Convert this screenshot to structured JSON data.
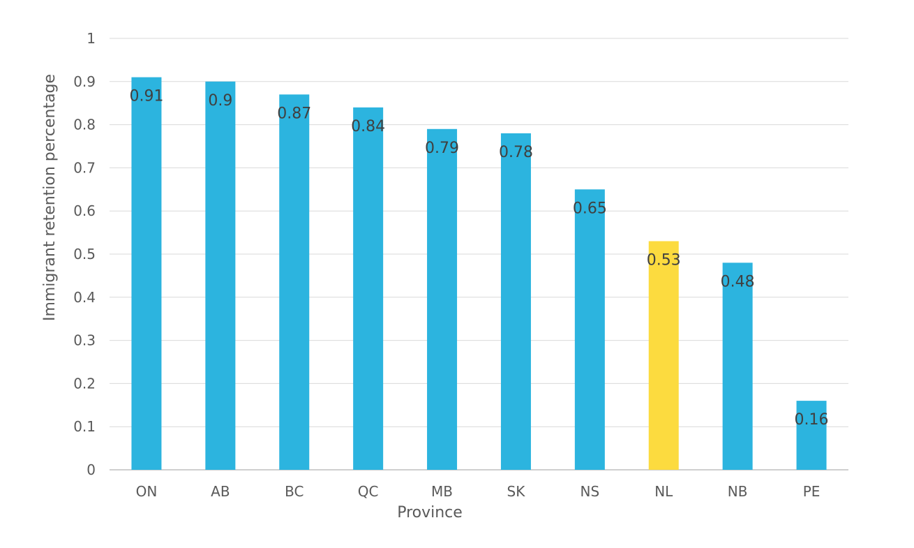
{
  "chart_data": {
    "type": "bar",
    "title": "",
    "xlabel": "Province",
    "ylabel": "Immigrant retention percentage",
    "ylim": [
      0,
      1
    ],
    "yticks": [
      "0",
      "0.1",
      "0.2",
      "0.3",
      "0.4",
      "0.5",
      "0.6",
      "0.7",
      "0.8",
      "0.9",
      "1"
    ],
    "grid": true,
    "legend": "none",
    "categories": [
      "ON",
      "AB",
      "BC",
      "QC",
      "MB",
      "SK",
      "NS",
      "NL",
      "NB",
      "PE"
    ],
    "values": [
      0.91,
      0.9,
      0.87,
      0.84,
      0.79,
      0.78,
      0.65,
      0.53,
      0.48,
      0.16
    ],
    "data_labels": [
      "0.91",
      "0.9",
      "0.87",
      "0.84",
      "0.79",
      "0.78",
      "0.65",
      "0.53",
      "0.48",
      "0.16"
    ],
    "highlight_category": "NL",
    "colors": {
      "bar": "#2CB4DF",
      "highlight": "#FCDB3F",
      "grid": "#D9D9D9",
      "axis": "#BFBFBF"
    }
  }
}
